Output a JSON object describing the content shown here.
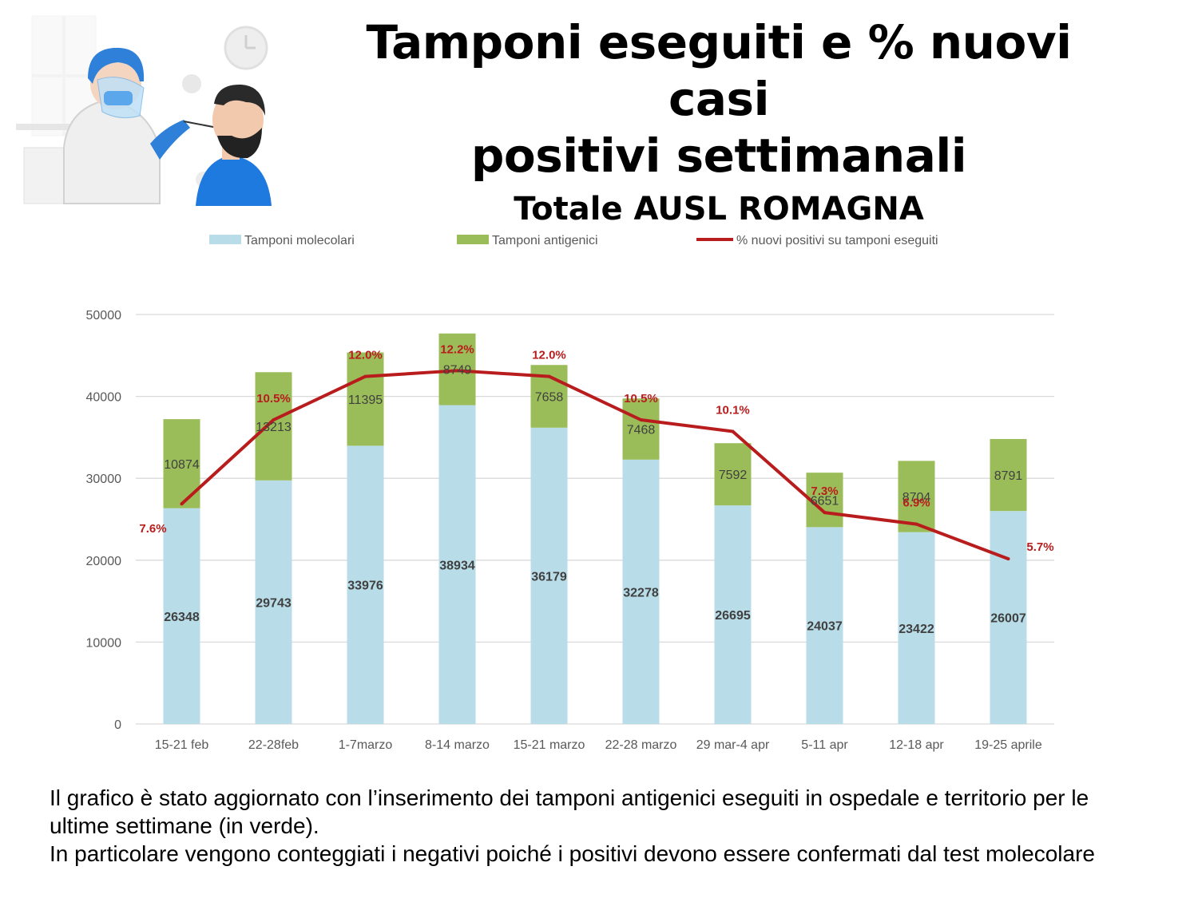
{
  "title": {
    "line1": "Tamponi eseguiti e % nuovi casi",
    "line2": "positivi settimanali",
    "subtitle": "Totale AUSL ROMAGNA"
  },
  "caption": {
    "line1": "Il grafico è stato aggiornato con l’inserimento dei tamponi antigenici eseguiti in ospedale e territorio per le",
    "line2": "ultime settimane (in verde).",
    "line3": "In particolare vengono conteggiati i negativi poiché i positivi devono essere confermati dal test molecolare"
  },
  "colors": {
    "molecolari": "#b9dde8",
    "antigenici": "#9bbd59",
    "line": "#b81c1c",
    "grid": "#d9d9d9",
    "axis_text": "#595959"
  },
  "chart_data": {
    "type": "bar",
    "stacked": true,
    "categories": [
      "15-21 feb",
      "22-28feb",
      "1-7marzo",
      "8-14 marzo",
      "15-21 marzo",
      "22-28 marzo",
      "29 mar-4 apr",
      "5-11 apr",
      "12-18 apr",
      "19-25 aprile"
    ],
    "series": [
      {
        "name": "Tamponi molecolari",
        "type": "bar",
        "values": [
          26348,
          29743,
          33976,
          38934,
          36179,
          32278,
          26695,
          24037,
          23422,
          26007
        ]
      },
      {
        "name": "Tamponi antigenici",
        "type": "bar",
        "values": [
          10874,
          13213,
          11395,
          8749,
          7658,
          7468,
          7592,
          6651,
          8704,
          8791
        ]
      },
      {
        "name": "% nuovi positivi su tamponi eseguiti",
        "type": "line",
        "values": [
          7.6,
          10.5,
          12.0,
          12.2,
          12.0,
          10.5,
          10.1,
          7.3,
          6.9,
          5.7
        ],
        "labels": [
          "7.6%",
          "10.5%",
          "12.0%",
          "12.2%",
          "12.0%",
          "10.5%",
          "10.1%",
          "7.3%",
          "6.9%",
          "5.7%"
        ]
      }
    ],
    "ylim": [
      0,
      50000
    ],
    "yticks": [
      "0",
      "10000",
      "20000",
      "30000",
      "40000",
      "50000"
    ],
    "grid": true,
    "legend_position": "top",
    "xlabel": "",
    "ylabel": ""
  }
}
